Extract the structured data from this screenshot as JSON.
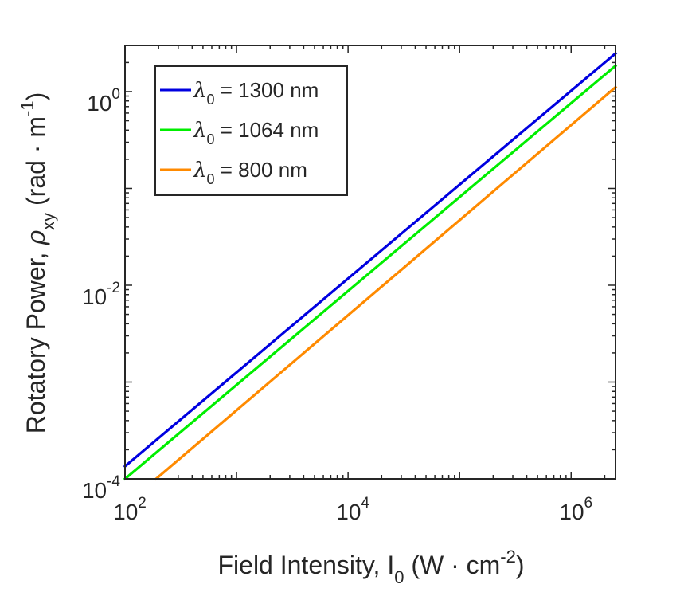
{
  "chart_data": {
    "type": "line",
    "title": "",
    "xscale": "log",
    "yscale": "log",
    "xlim": [
      100,
      2500000
    ],
    "ylim": [
      0.0001,
      3
    ],
    "x_ticks": [
      {
        "value": 100,
        "base": "10",
        "exp": "2"
      },
      {
        "value": 10000,
        "base": "10",
        "exp": "4"
      },
      {
        "value": 1000000,
        "base": "10",
        "exp": "6"
      }
    ],
    "y_ticks": [
      {
        "value": 0.0001,
        "base": "10",
        "exp": "-4"
      },
      {
        "value": 0.01,
        "base": "10",
        "exp": "-2"
      },
      {
        "value": 1,
        "base": "10",
        "exp": "0"
      }
    ],
    "xlabel": {
      "prefix": "Field Intensity, I",
      "sub": "0",
      "unit_open": " (W · cm",
      "unit_exp": "-2",
      "unit_close": ")"
    },
    "ylabel": {
      "prefix": "Rotatory Power, ",
      "symbol": "ρ",
      "sub": "xy",
      "unit_open": " (rad · m",
      "unit_exp": "-1",
      "unit_close": ")"
    },
    "legend": {
      "position": "top-left"
    },
    "series": [
      {
        "name": "λ0 = 1300 nm",
        "symbol": "λ",
        "sub": "0",
        "text": " = 1300 nm",
        "color": "#0000e0",
        "x": [
          100,
          2500000
        ],
        "y": [
          0.000135,
          2.48
        ]
      },
      {
        "name": "λ0 = 1064 nm",
        "symbol": "λ",
        "sub": "0",
        "text": " = 1064 nm",
        "color": "#00ee00",
        "x": [
          100,
          2500000
        ],
        "y": [
          0.0001,
          1.85
        ]
      },
      {
        "name": "λ0 = 800 nm",
        "symbol": "λ",
        "sub": "0",
        "text": " = 800 nm",
        "color": "#ff8a00",
        "x": [
          190,
          2500000
        ],
        "y": [
          0.0001,
          1.11
        ]
      }
    ]
  }
}
